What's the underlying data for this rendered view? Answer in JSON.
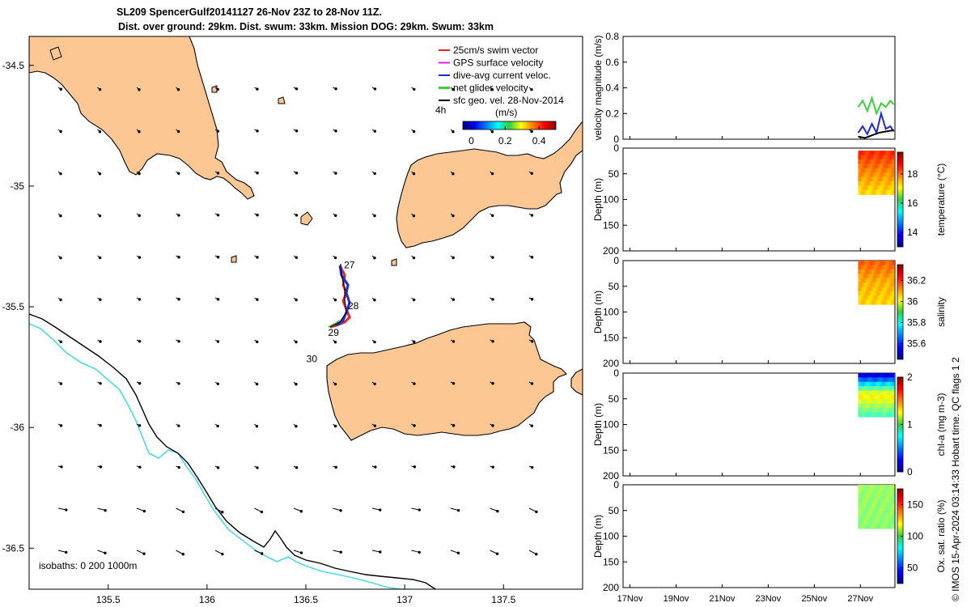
{
  "figure": {
    "title_line1": "SL209 SpencerGulf20141127 26-Nov 23Z to 28-Nov 11Z.",
    "title_line2": "Dist. over ground: 29km. Dist. swum: 33km. Mission DOG: 29km. Swum: 33km",
    "side_label": "© IMOS 15-Apr-2024 03:14:33 Hobart time. QC flags 1  2",
    "colors": {
      "land": "#fdc793",
      "coast": "#000000",
      "isobath_200": "#36d8e6",
      "isobath_1000": "#000000",
      "glider_red": "#e8251f",
      "glider_blue": "#1f2bd8",
      "glider_green": "#3fcf3f",
      "gps_magenta": "#e020e0"
    }
  },
  "map": {
    "x_ticks": [
      "135.5",
      "136",
      "136.5",
      "137",
      "137.5"
    ],
    "y_ticks": [
      "-34.5",
      "-35",
      "-35.5",
      "-36",
      "-36.5"
    ],
    "x_tick_values": [
      135.5,
      136,
      136.5,
      137,
      137.5
    ],
    "y_tick_values": [
      -34.5,
      -35,
      -35.5,
      -36,
      -36.5
    ],
    "xlim": [
      135.1,
      137.9
    ],
    "ylim": [
      -36.67,
      -34.38
    ],
    "legend": [
      {
        "label": "25cm/s swim vector",
        "color": "#e8251f"
      },
      {
        "label": "GPS surface velocity",
        "color": "#e020e0"
      },
      {
        "label": "dive-avg current veloc.",
        "color": "#1f2bd8"
      },
      {
        "label": "net glider velocity",
        "color": "#3fcf3f"
      },
      {
        "label": "sfc geo. vel. 28-Nov-2014",
        "color": "#000000"
      }
    ],
    "legend_extra": "4h",
    "colorbar_label": "(m/s)",
    "colorbar_ticks": [
      "0",
      "0.2",
      "0.4"
    ],
    "colorbar_tick_values": [
      0,
      0.2,
      0.4
    ],
    "colorbar_range": [
      -0.05,
      0.5
    ],
    "day_labels": [
      {
        "text": "27",
        "lon": 136.72,
        "lat": -35.34
      },
      {
        "text": "28",
        "lon": 136.74,
        "lat": -35.51
      },
      {
        "text": "29",
        "lon": 136.64,
        "lat": -35.62
      },
      {
        "text": "30",
        "lon": 136.53,
        "lat": -35.73
      }
    ],
    "isobath_caption": "isobaths: 0   200  1000m"
  },
  "chart_data": [
    {
      "type": "line",
      "ylabel": "velocity magnitude (m/s)",
      "ylim": [
        0,
        0.8
      ],
      "y_ticks": [
        "0",
        "0.2",
        "0.4",
        "0.6",
        "0.8"
      ],
      "x_ticks": [
        "17Nov",
        "19Nov",
        "21Nov",
        "23Nov",
        "25Nov",
        "27Nov"
      ],
      "xlim_days": [
        16.7,
        28.5
      ],
      "series": [
        {
          "color": "#3fcf3f",
          "x": [
            26.9,
            27.1,
            27.3,
            27.5,
            27.7,
            27.9,
            28.1,
            28.3,
            28.45
          ],
          "values": [
            0.25,
            0.3,
            0.22,
            0.32,
            0.2,
            0.28,
            0.25,
            0.3,
            0.27
          ]
        },
        {
          "color": "#1f2bd8",
          "x": [
            26.9,
            27.1,
            27.3,
            27.5,
            27.7,
            27.9,
            28.1,
            28.3,
            28.45
          ],
          "values": [
            0.05,
            0.1,
            0.04,
            0.12,
            0.05,
            0.2,
            0.08,
            0.1,
            0.06
          ]
        },
        {
          "color": "#000000",
          "x": [
            26.9,
            27.2,
            27.5,
            27.8,
            28.1,
            28.45
          ],
          "values": [
            0.02,
            0.01,
            0.03,
            0.05,
            0.06,
            0.07
          ]
        }
      ]
    },
    {
      "type": "heatmap",
      "ylabel": "Depth (m)",
      "colorbar_label": "temperature (°C)",
      "ylim": [
        200,
        0
      ],
      "y_ticks": [
        "0",
        "50",
        "100",
        "150",
        "200"
      ],
      "colorbar_ticks": [
        "14",
        "16",
        "18"
      ],
      "colorbar_range": [
        13,
        19.5
      ],
      "x_range_days": [
        26.9,
        28.45
      ],
      "depth_range": [
        5,
        90
      ],
      "values": [
        18.4,
        17.8,
        17.3
      ]
    },
    {
      "type": "heatmap",
      "ylabel": "Depth (m)",
      "colorbar_label": "salinity",
      "ylim": [
        200,
        0
      ],
      "y_ticks": [
        "0",
        "50",
        "100",
        "150",
        "200"
      ],
      "colorbar_ticks": [
        "35.6",
        "35.8",
        "36",
        "36.2"
      ],
      "colorbar_range": [
        35.45,
        36.35
      ],
      "x_range_days": [
        26.9,
        28.45
      ],
      "depth_range": [
        0,
        85
      ],
      "values": [
        36.15,
        36.08,
        36.05
      ]
    },
    {
      "type": "heatmap",
      "ylabel": "Depth (m)",
      "colorbar_label": "chl-a (mg m-3)",
      "ylim": [
        200,
        0
      ],
      "y_ticks": [
        "0",
        "50",
        "100",
        "150",
        "200"
      ],
      "colorbar_ticks": [
        "0",
        "1",
        "2"
      ],
      "colorbar_range": [
        0,
        2
      ],
      "x_range_days": [
        26.9,
        28.45
      ],
      "depth_range": [
        0,
        85
      ],
      "values": [
        0.2,
        1.3,
        0.9
      ]
    },
    {
      "type": "heatmap",
      "ylabel": "Depth (m)",
      "colorbar_label": "Ox. sat. ratio (%)",
      "ylim": [
        200,
        0
      ],
      "y_ticks": [
        "0",
        "50",
        "100",
        "150",
        "200"
      ],
      "x_ticks": [
        "17Nov",
        "19Nov",
        "21Nov",
        "23Nov",
        "25Nov",
        "27Nov"
      ],
      "colorbar_ticks": [
        "50",
        "100",
        "150"
      ],
      "colorbar_range": [
        25,
        175
      ],
      "x_range_days": [
        26.9,
        28.45
      ],
      "depth_range": [
        0,
        85
      ],
      "values": [
        104,
        103,
        102
      ]
    }
  ]
}
